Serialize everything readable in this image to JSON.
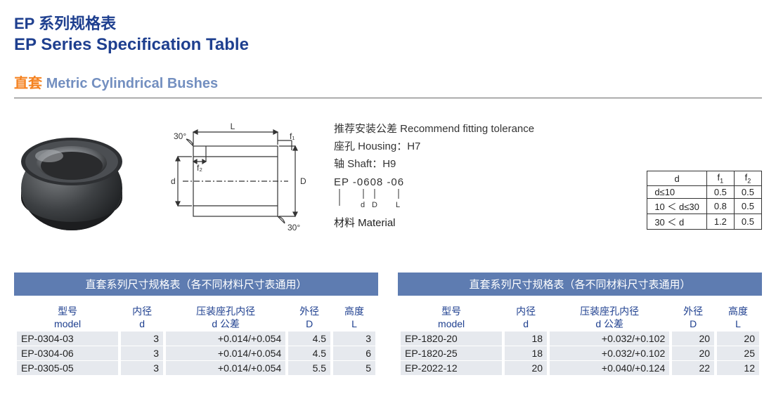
{
  "header": {
    "title_cn": "EP 系列规格表",
    "title_en": "EP Series Specification Table",
    "subtitle_cn": "直套",
    "subtitle_en": "Metric Cylindrical Bushes"
  },
  "tech_drawing": {
    "labels": {
      "L": "L",
      "d": "d",
      "D": "D",
      "f1": "f₁",
      "f2": "f₂",
      "angle": "30°"
    },
    "stroke_color": "#333333",
    "dashed_color": "#666666"
  },
  "fit_info": {
    "recommend": "推荐安装公差 Recommend fitting tolerance",
    "housing": "座孔 Housing：H7",
    "shaft": "轴  Shaft：H9",
    "code": "EP -0608 -06",
    "code_legend": {
      "d": "d",
      "D": "D",
      "L": "L"
    },
    "material": "材料 Material"
  },
  "mini_table": {
    "headers": [
      "d",
      "f₁",
      "f₂"
    ],
    "rows": [
      [
        "d≤10",
        "0.5",
        "0.5"
      ],
      [
        "10 ＜ d≤30",
        "0.8",
        "0.5"
      ],
      [
        "30 ＜ d",
        "1.2",
        "0.5"
      ]
    ]
  },
  "spec_tables": {
    "header_text": "直套系列尺寸规格表（各不同材料尺寸表通用）",
    "columns": [
      {
        "cn": "型号",
        "en": "model"
      },
      {
        "cn": "内径",
        "en": "d"
      },
      {
        "cn": "压装座孔内径",
        "en": "d 公差"
      },
      {
        "cn": "外径",
        "en": "D"
      },
      {
        "cn": "高度",
        "en": "L"
      }
    ],
    "left_rows": [
      [
        "EP-0304-03",
        "3",
        "+0.014/+0.054",
        "4.5",
        "3"
      ],
      [
        "EP-0304-06",
        "3",
        "+0.014/+0.054",
        "4.5",
        "6"
      ],
      [
        "EP-0305-05",
        "3",
        "+0.014/+0.054",
        "5.5",
        "5"
      ]
    ],
    "right_rows": [
      [
        "EP-1820-20",
        "18",
        "+0.032/+0.102",
        "20",
        "20"
      ],
      [
        "EP-1820-25",
        "18",
        "+0.032/+0.102",
        "20",
        "25"
      ],
      [
        "EP-2022-12",
        "20",
        "+0.040/+0.124",
        "22",
        "12"
      ]
    ]
  },
  "colors": {
    "brand_blue": "#1e3f8f",
    "header_bar": "#5e7cb1",
    "row_bg": "#e6e9ee",
    "orange": "#f58220",
    "subtitle_en": "#738fc0"
  }
}
